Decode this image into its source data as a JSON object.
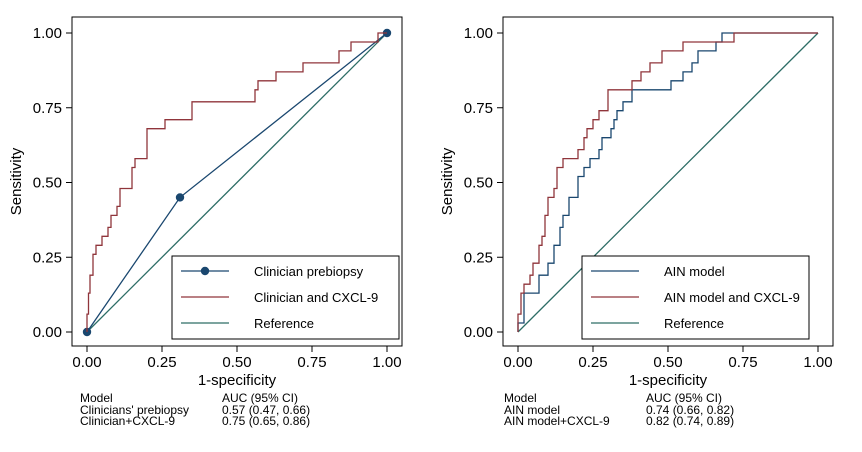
{
  "chart_data": [
    {
      "type": "line",
      "id": "left",
      "xlabel": "1-specificity",
      "ylabel": "Sensitivity",
      "xlim": [
        0,
        1
      ],
      "ylim": [
        0,
        1
      ],
      "xticks": [
        "0.00",
        "0.25",
        "0.50",
        "0.75",
        "1.00"
      ],
      "yticks": [
        "0.00",
        "0.25",
        "0.50",
        "0.75",
        "1.00"
      ],
      "grid": false,
      "legend_position": "bottom-right",
      "series": [
        {
          "name": "Clinician prebiopsy",
          "color": "#1a476f",
          "markers": true,
          "points": [
            [
              0,
              0
            ],
            [
              0.31,
              0.45
            ],
            [
              1,
              1
            ]
          ]
        },
        {
          "name": "Clinician and CXCL-9",
          "color": "#90353b",
          "markers": false,
          "step": true,
          "points": [
            [
              0,
              0
            ],
            [
              0,
              0.06
            ],
            [
              0.005,
              0.06
            ],
            [
              0.005,
              0.13
            ],
            [
              0.01,
              0.13
            ],
            [
              0.01,
              0.19
            ],
            [
              0.02,
              0.19
            ],
            [
              0.02,
              0.26
            ],
            [
              0.03,
              0.26
            ],
            [
              0.03,
              0.29
            ],
            [
              0.05,
              0.29
            ],
            [
              0.05,
              0.32
            ],
            [
              0.07,
              0.32
            ],
            [
              0.07,
              0.35
            ],
            [
              0.08,
              0.35
            ],
            [
              0.08,
              0.39
            ],
            [
              0.1,
              0.39
            ],
            [
              0.1,
              0.42
            ],
            [
              0.11,
              0.42
            ],
            [
              0.11,
              0.48
            ],
            [
              0.15,
              0.48
            ],
            [
              0.15,
              0.55
            ],
            [
              0.16,
              0.55
            ],
            [
              0.16,
              0.58
            ],
            [
              0.2,
              0.58
            ],
            [
              0.2,
              0.68
            ],
            [
              0.26,
              0.68
            ],
            [
              0.26,
              0.71
            ],
            [
              0.35,
              0.71
            ],
            [
              0.35,
              0.77
            ],
            [
              0.56,
              0.77
            ],
            [
              0.56,
              0.81
            ],
            [
              0.57,
              0.81
            ],
            [
              0.57,
              0.84
            ],
            [
              0.63,
              0.84
            ],
            [
              0.63,
              0.87
            ],
            [
              0.72,
              0.87
            ],
            [
              0.72,
              0.9
            ],
            [
              0.84,
              0.9
            ],
            [
              0.84,
              0.94
            ],
            [
              0.88,
              0.94
            ],
            [
              0.88,
              0.97
            ],
            [
              0.97,
              0.97
            ],
            [
              0.97,
              1
            ],
            [
              1,
              1
            ]
          ]
        },
        {
          "name": "Reference",
          "color": "#2d6d66",
          "markers": false,
          "points": [
            [
              0,
              0
            ],
            [
              1,
              1
            ]
          ]
        }
      ],
      "auc_table": {
        "header": [
          "Model",
          "AUC (95% CI)"
        ],
        "rows": [
          [
            "Clinicians' prebiopsy",
            "0.57 (0.47, 0.66)"
          ],
          [
            "Clinician+CXCL-9",
            "0.75 (0.65, 0.86)"
          ]
        ]
      }
    },
    {
      "type": "line",
      "id": "right",
      "xlabel": "1-specificity",
      "ylabel": "Sensitivity",
      "xlim": [
        0,
        1
      ],
      "ylim": [
        0,
        1
      ],
      "xticks": [
        "0.00",
        "0.25",
        "0.50",
        "0.75",
        "1.00"
      ],
      "yticks": [
        "0.00",
        "0.25",
        "0.50",
        "0.75",
        "1.00"
      ],
      "grid": false,
      "legend_position": "bottom-right",
      "series": [
        {
          "name": "AIN model",
          "color": "#1a476f",
          "markers": false,
          "step": true,
          "points": [
            [
              0,
              0
            ],
            [
              0,
              0.03
            ],
            [
              0.02,
              0.03
            ],
            [
              0.02,
              0.13
            ],
            [
              0.07,
              0.13
            ],
            [
              0.07,
              0.19
            ],
            [
              0.1,
              0.19
            ],
            [
              0.1,
              0.23
            ],
            [
              0.12,
              0.23
            ],
            [
              0.12,
              0.29
            ],
            [
              0.14,
              0.29
            ],
            [
              0.14,
              0.35
            ],
            [
              0.15,
              0.35
            ],
            [
              0.15,
              0.39
            ],
            [
              0.17,
              0.39
            ],
            [
              0.17,
              0.45
            ],
            [
              0.2,
              0.45
            ],
            [
              0.2,
              0.52
            ],
            [
              0.22,
              0.52
            ],
            [
              0.22,
              0.55
            ],
            [
              0.24,
              0.55
            ],
            [
              0.24,
              0.58
            ],
            [
              0.27,
              0.58
            ],
            [
              0.27,
              0.61
            ],
            [
              0.28,
              0.61
            ],
            [
              0.28,
              0.65
            ],
            [
              0.31,
              0.65
            ],
            [
              0.31,
              0.68
            ],
            [
              0.32,
              0.68
            ],
            [
              0.32,
              0.71
            ],
            [
              0.33,
              0.71
            ],
            [
              0.33,
              0.74
            ],
            [
              0.35,
              0.74
            ],
            [
              0.35,
              0.77
            ],
            [
              0.38,
              0.77
            ],
            [
              0.38,
              0.81
            ],
            [
              0.51,
              0.81
            ],
            [
              0.51,
              0.84
            ],
            [
              0.55,
              0.84
            ],
            [
              0.55,
              0.87
            ],
            [
              0.58,
              0.87
            ],
            [
              0.58,
              0.9
            ],
            [
              0.6,
              0.9
            ],
            [
              0.6,
              0.94
            ],
            [
              0.66,
              0.94
            ],
            [
              0.66,
              0.97
            ],
            [
              0.68,
              0.97
            ],
            [
              0.68,
              1
            ],
            [
              1,
              1
            ]
          ]
        },
        {
          "name": "AIN model and CXCL-9",
          "color": "#90353b",
          "markers": false,
          "step": true,
          "points": [
            [
              0,
              0
            ],
            [
              0,
              0.06
            ],
            [
              0.01,
              0.06
            ],
            [
              0.01,
              0.13
            ],
            [
              0.02,
              0.13
            ],
            [
              0.02,
              0.16
            ],
            [
              0.04,
              0.16
            ],
            [
              0.04,
              0.19
            ],
            [
              0.05,
              0.19
            ],
            [
              0.05,
              0.23
            ],
            [
              0.07,
              0.23
            ],
            [
              0.07,
              0.29
            ],
            [
              0.08,
              0.29
            ],
            [
              0.08,
              0.32
            ],
            [
              0.09,
              0.32
            ],
            [
              0.09,
              0.39
            ],
            [
              0.1,
              0.39
            ],
            [
              0.1,
              0.45
            ],
            [
              0.12,
              0.45
            ],
            [
              0.12,
              0.48
            ],
            [
              0.13,
              0.48
            ],
            [
              0.13,
              0.55
            ],
            [
              0.15,
              0.55
            ],
            [
              0.15,
              0.58
            ],
            [
              0.2,
              0.58
            ],
            [
              0.2,
              0.61
            ],
            [
              0.22,
              0.61
            ],
            [
              0.22,
              0.65
            ],
            [
              0.23,
              0.65
            ],
            [
              0.23,
              0.68
            ],
            [
              0.25,
              0.68
            ],
            [
              0.25,
              0.71
            ],
            [
              0.27,
              0.71
            ],
            [
              0.27,
              0.74
            ],
            [
              0.3,
              0.74
            ],
            [
              0.3,
              0.81
            ],
            [
              0.38,
              0.81
            ],
            [
              0.38,
              0.84
            ],
            [
              0.41,
              0.84
            ],
            [
              0.41,
              0.87
            ],
            [
              0.44,
              0.87
            ],
            [
              0.44,
              0.9
            ],
            [
              0.48,
              0.9
            ],
            [
              0.48,
              0.94
            ],
            [
              0.55,
              0.94
            ],
            [
              0.55,
              0.97
            ],
            [
              0.72,
              0.97
            ],
            [
              0.72,
              1
            ],
            [
              1,
              1
            ]
          ]
        },
        {
          "name": "Reference",
          "color": "#2d6d66",
          "markers": false,
          "points": [
            [
              0,
              0
            ],
            [
              1,
              1
            ]
          ]
        }
      ],
      "auc_table": {
        "header": [
          "Model",
          "AUC (95% CI)"
        ],
        "rows": [
          [
            "AIN model",
            "0.74 (0.66, 0.82)"
          ],
          [
            "AIN model+CXCL-9",
            "0.82 (0.74, 0.89)"
          ]
        ]
      }
    }
  ]
}
